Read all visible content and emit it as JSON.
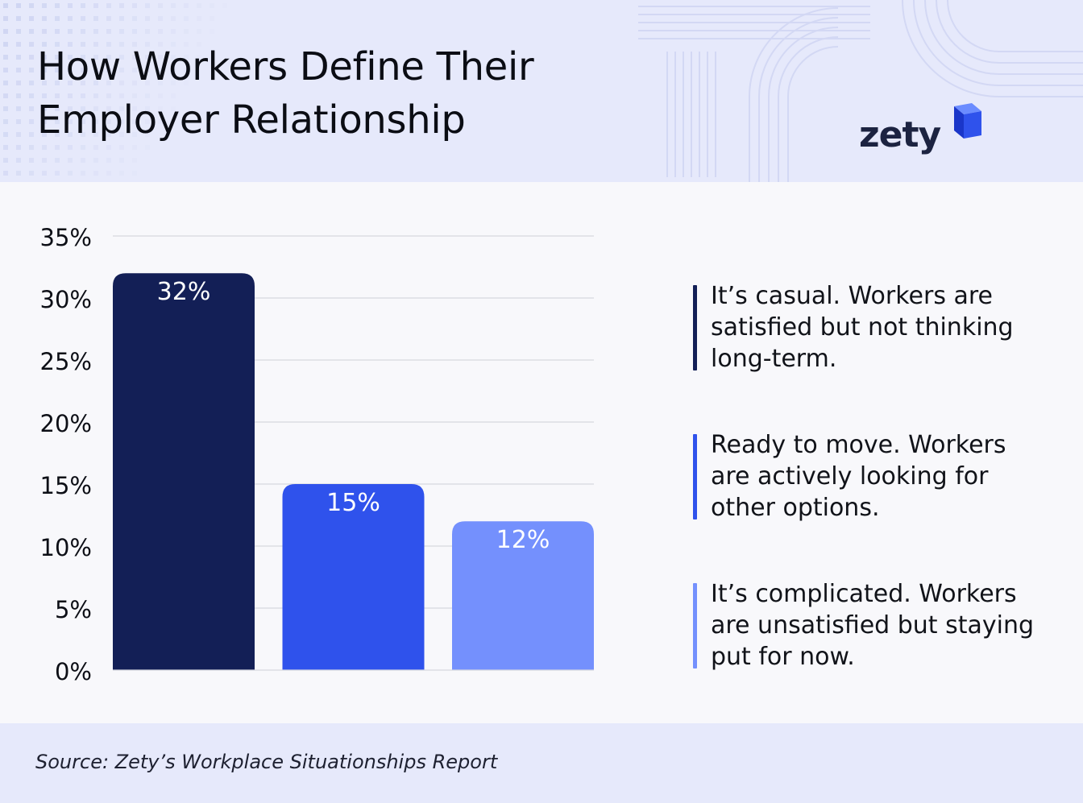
{
  "header": {
    "title": "How Workers Define Their\nEmployer Relationship",
    "logo_text": "zety",
    "background": "#e6e9fb"
  },
  "chart_data": {
    "type": "bar",
    "title": "How Workers Define Their Employer Relationship",
    "categories": [
      "It’s casual. Workers are satisfied but not thinking long-term.",
      "Ready to move. Workers are actively looking for other options.",
      "It’s complicated. Workers are unsatisfied but staying put for now."
    ],
    "values": [
      32,
      15,
      12
    ],
    "data_labels": [
      "32%",
      "15%",
      "12%"
    ],
    "colors": [
      "#131f56",
      "#2f52ec",
      "#7490fd"
    ],
    "ylim": [
      0,
      35
    ],
    "yticks": [
      0,
      5,
      10,
      15,
      20,
      25,
      30,
      35
    ],
    "ytick_labels": [
      "0%",
      "5%",
      "10%",
      "15%",
      "20%",
      "25%",
      "30%",
      "35%"
    ],
    "grid": true,
    "legend_placement": "right"
  },
  "legend": [
    {
      "text": "It’s casual. Workers are satisfied but not thinking long-term.",
      "color": "#131f56"
    },
    {
      "text": "Ready to move. Workers are actively looking for other options.",
      "color": "#2f52ec"
    },
    {
      "text": "It’s complicated. Workers are unsatisfied but staying put for now.",
      "color": "#7490fd"
    }
  ],
  "footer": {
    "source": "Source: Zety’s Workplace Situationships Report"
  }
}
